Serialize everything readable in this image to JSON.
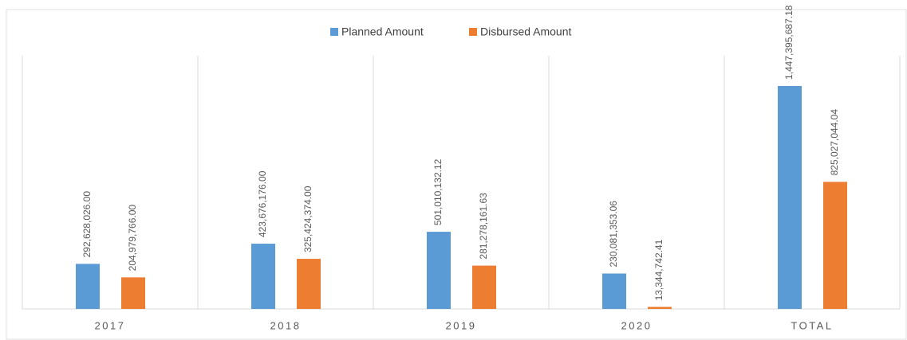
{
  "chart_data": {
    "type": "bar",
    "categories": [
      "2017",
      "2018",
      "2019",
      "2020",
      "TOTAL"
    ],
    "series": [
      {
        "name": "Planned Amount",
        "color": "#5b9bd5",
        "values": [
          292628026.0,
          423676176.0,
          501010132.12,
          230081353.06,
          1447395687.18
        ],
        "value_labels": [
          "292,628,026.00",
          "423,676,176.00",
          "501,010,132.12",
          "230,081,353.06",
          "1,447,395,687.18"
        ]
      },
      {
        "name": "Disbursed Amount",
        "color": "#ed7d31",
        "values": [
          204979766.0,
          325424374.0,
          281278161.63,
          13344742.41,
          825027044.04
        ],
        "value_labels": [
          "204,979,766.00",
          "325,424,374.00",
          "281,278,161.63",
          "13,344,742.41",
          "825,027,044.04"
        ]
      }
    ],
    "legend": "top"
  }
}
